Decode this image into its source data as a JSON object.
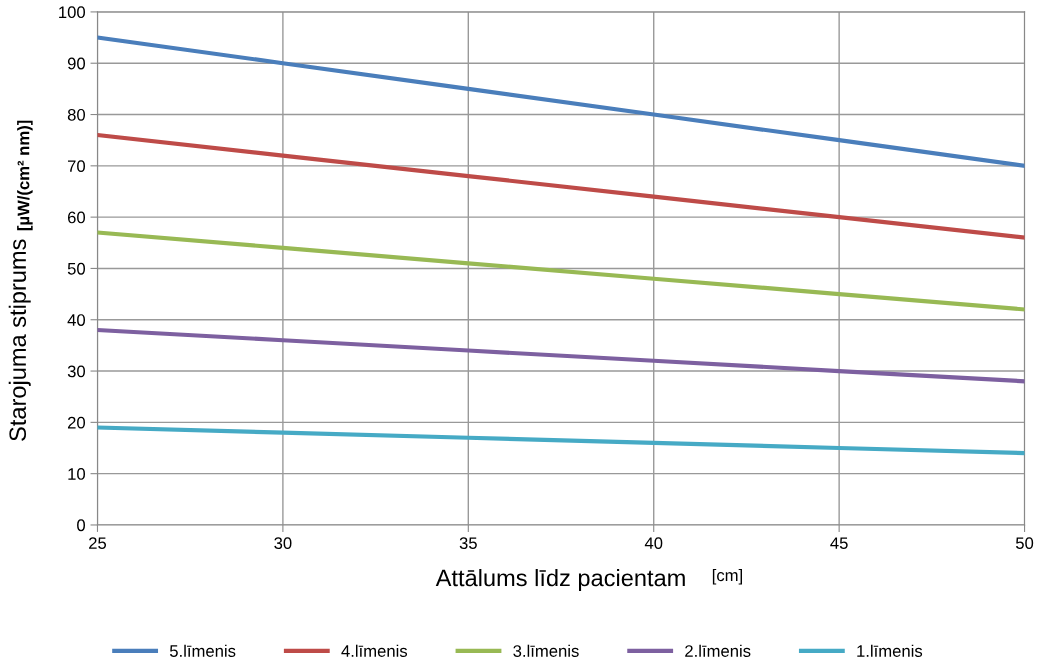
{
  "chart_data": {
    "type": "line",
    "xlabel": "Attālums līdz pacientam",
    "ylabel": "Starojuma stiprums",
    "annotations": [
      "[cm]",
      "[µW/(cm² nm)]"
    ],
    "x": [
      25,
      30,
      35,
      40,
      45,
      50
    ],
    "series": [
      {
        "name": "5.līmenis",
        "color": "#4a7ebb",
        "values": [
          95,
          90,
          85,
          80,
          75,
          70
        ]
      },
      {
        "name": "4.līmenis",
        "color": "#be4b48",
        "values": [
          76,
          72,
          68,
          64,
          60,
          56
        ]
      },
      {
        "name": "3.līmenis",
        "color": "#98b954",
        "values": [
          57,
          54,
          51,
          48,
          45,
          42
        ]
      },
      {
        "name": "2.līmenis",
        "color": "#7d60a0",
        "values": [
          38,
          36,
          34,
          32,
          30,
          28
        ]
      },
      {
        "name": "1.līmenis",
        "color": "#46aac5",
        "values": [
          19,
          18,
          17,
          16,
          15,
          14
        ]
      }
    ],
    "xlim": [
      25,
      50
    ],
    "xticks": [
      25,
      30,
      35,
      40,
      45,
      50
    ],
    "ylim": [
      0,
      100
    ],
    "yticks": [
      0,
      10,
      20,
      30,
      40,
      50,
      60,
      70,
      80,
      90,
      100
    ],
    "grid": true,
    "legend": "bottom",
    "marker": "none",
    "line_style": "solid"
  }
}
